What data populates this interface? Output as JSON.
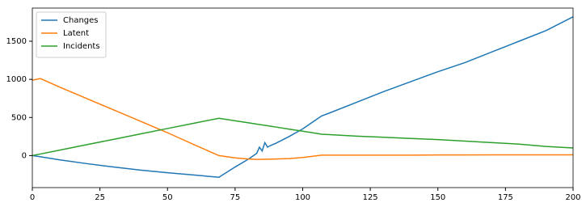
{
  "chart_data": {
    "type": "line",
    "x": [
      0,
      3,
      10,
      20,
      30,
      40,
      50,
      60,
      69,
      75,
      80,
      83,
      84,
      85,
      86,
      87,
      88,
      90,
      95,
      100,
      107,
      110,
      120,
      130,
      140,
      150,
      160,
      170,
      180,
      190,
      200
    ],
    "series": [
      {
        "name": "Changes",
        "color": "#1f77b4",
        "values": [
          0,
          -15,
          -55,
          -105,
          -150,
          -190,
          -225,
          -255,
          -285,
          -150,
          -45,
          30,
          110,
          60,
          170,
          110,
          130,
          160,
          250,
          350,
          520,
          560,
          700,
          840,
          970,
          1100,
          1220,
          1360,
          1500,
          1640,
          1820
        ]
      },
      {
        "name": "Latent",
        "color": "#ff7f0e",
        "values": [
          990,
          1010,
          900,
          750,
          600,
          450,
          300,
          140,
          0,
          -30,
          -45,
          -50,
          -50,
          -49,
          -49,
          -48,
          -48,
          -45,
          -40,
          -25,
          5,
          5,
          5,
          5,
          5,
          8,
          8,
          10,
          10,
          10,
          10
        ]
      },
      {
        "name": "Incidents",
        "color": "#2ca02c",
        "values": [
          0,
          21,
          71,
          142,
          213,
          284,
          355,
          426,
          490,
          457,
          430,
          413,
          407,
          402,
          397,
          391,
          386,
          375,
          347,
          320,
          280,
          275,
          255,
          240,
          225,
          210,
          190,
          170,
          150,
          120,
          100
        ]
      }
    ],
    "xlim": [
      0,
      200
    ],
    "xticks": [
      0,
      25,
      50,
      75,
      100,
      125,
      150,
      175,
      200
    ],
    "ylim": [
      -420,
      1935
    ],
    "yticks": [
      0,
      500,
      1000,
      1500
    ],
    "legend": "upper left"
  }
}
